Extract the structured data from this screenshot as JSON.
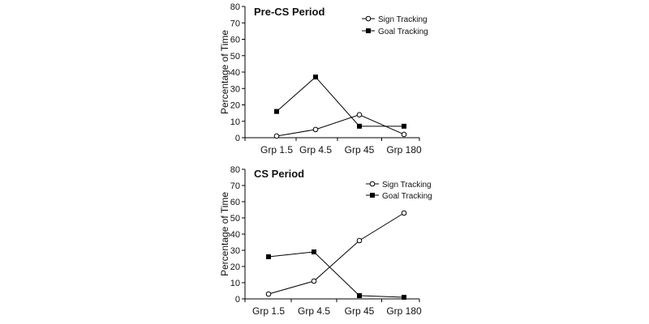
{
  "chart_data": [
    {
      "type": "line",
      "title": "Pre-CS Period",
      "xlabel": "",
      "ylabel": "Percentage of Time",
      "ylim": [
        0,
        80
      ],
      "yticks": [
        0,
        10,
        20,
        30,
        40,
        50,
        60,
        70,
        80
      ],
      "grid": false,
      "legend_position": "top-right",
      "categories": [
        "Grp 1.5",
        "Grp 4.5",
        "Grp 45",
        "Grp 180"
      ],
      "series": [
        {
          "name": "Sign Tracking",
          "marker": "open-circle",
          "values": [
            1,
            5,
            14,
            2
          ]
        },
        {
          "name": "Goal Tracking",
          "marker": "filled-square",
          "values": [
            16,
            37,
            7,
            7
          ]
        }
      ]
    },
    {
      "type": "line",
      "title": "CS Period",
      "xlabel": "",
      "ylabel": "Percentage of Time",
      "ylim": [
        0,
        80
      ],
      "yticks": [
        0,
        10,
        20,
        30,
        40,
        50,
        60,
        70,
        80
      ],
      "grid": false,
      "legend_position": "top-right",
      "categories": [
        "Grp 1.5",
        "Grp 4.5",
        "Grp 45",
        "Grp 180"
      ],
      "series": [
        {
          "name": "Sign Tracking",
          "marker": "open-circle",
          "values": [
            3,
            11,
            36,
            53
          ]
        },
        {
          "name": "Goal Tracking",
          "marker": "filled-square",
          "values": [
            26,
            29,
            2,
            1
          ]
        }
      ]
    }
  ]
}
